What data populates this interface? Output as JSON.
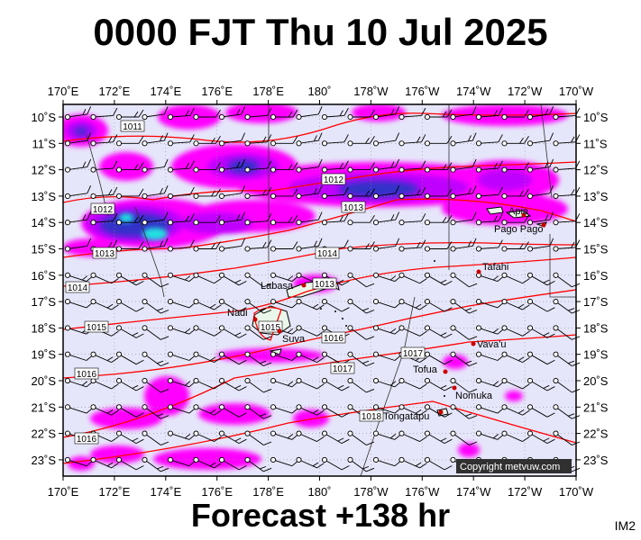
{
  "header": {
    "title": "0000 FJT Thu 10 Jul 2025"
  },
  "footer": {
    "forecast": "Forecast +138 hr",
    "code": "IM2"
  },
  "map": {
    "lon_labels": [
      "170˚E",
      "172˚E",
      "174˚E",
      "176˚E",
      "178˚E",
      "180˚",
      "178˚W",
      "176˚W",
      "174˚W",
      "172˚W",
      "170˚W"
    ],
    "lat_labels": [
      "10˚S",
      "11˚S",
      "12˚S",
      "13˚S",
      "14˚S",
      "15˚S",
      "16˚S",
      "17˚S",
      "18˚S",
      "19˚S",
      "20˚S",
      "21˚S",
      "22˚S",
      "23˚S"
    ],
    "isobar_labels": [
      "1011",
      "1012",
      "1013",
      "1012",
      "1013",
      "1014",
      "1014",
      "1015",
      "1013",
      "1015",
      "1016",
      "1016",
      "1017",
      "1016",
      "1018",
      "1017"
    ],
    "places": [
      "Apia",
      "Pago Pago",
      "Tafahi",
      "Labasa",
      "Nadi",
      "Suva",
      "Vava'u",
      "Tofua",
      "Nomuka",
      "Tongatapu"
    ],
    "copyright": "Copyright metvuw.com",
    "colors": {
      "background": "#e6e6fa",
      "rain_light": "#ff00ff",
      "rain_mid": "#c000ff",
      "rain_heavy": "#2020c0",
      "rain_core": "#00e0ff",
      "isobar": "#ff0000"
    }
  }
}
